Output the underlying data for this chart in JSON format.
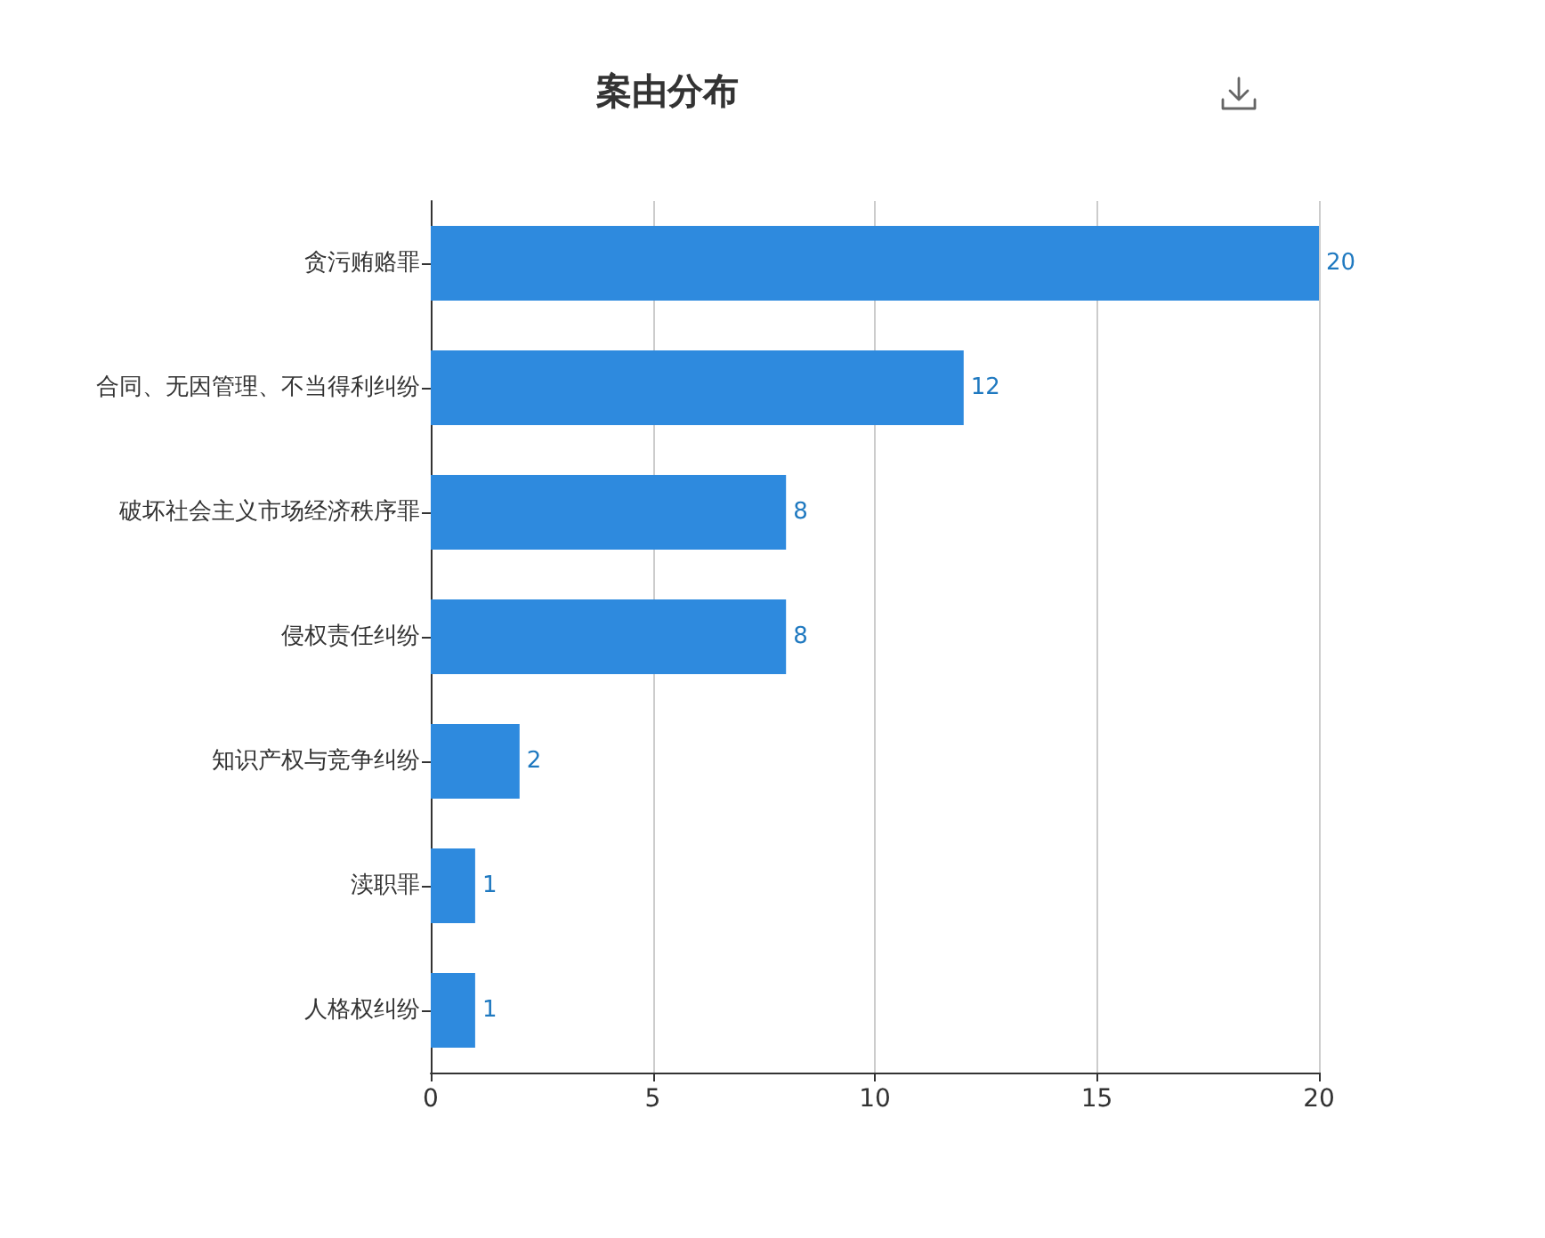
{
  "chart_data": {
    "type": "bar",
    "orientation": "horizontal",
    "title": "案由分布",
    "categories": [
      "贪污贿赂罪",
      "合同、无因管理、不当得利纠纷",
      "破坏社会主义市场经济秩序罪",
      "侵权责任纠纷",
      "知识产权与竞争纠纷",
      "渎职罪",
      "人格权纠纷"
    ],
    "values": [
      20,
      12,
      8,
      8,
      2,
      1,
      1
    ],
    "color": "#2e8ade",
    "xlim": [
      0,
      20
    ],
    "xticks": [
      0,
      5,
      10,
      15,
      20
    ],
    "grid": "x",
    "data_labels": true
  }
}
